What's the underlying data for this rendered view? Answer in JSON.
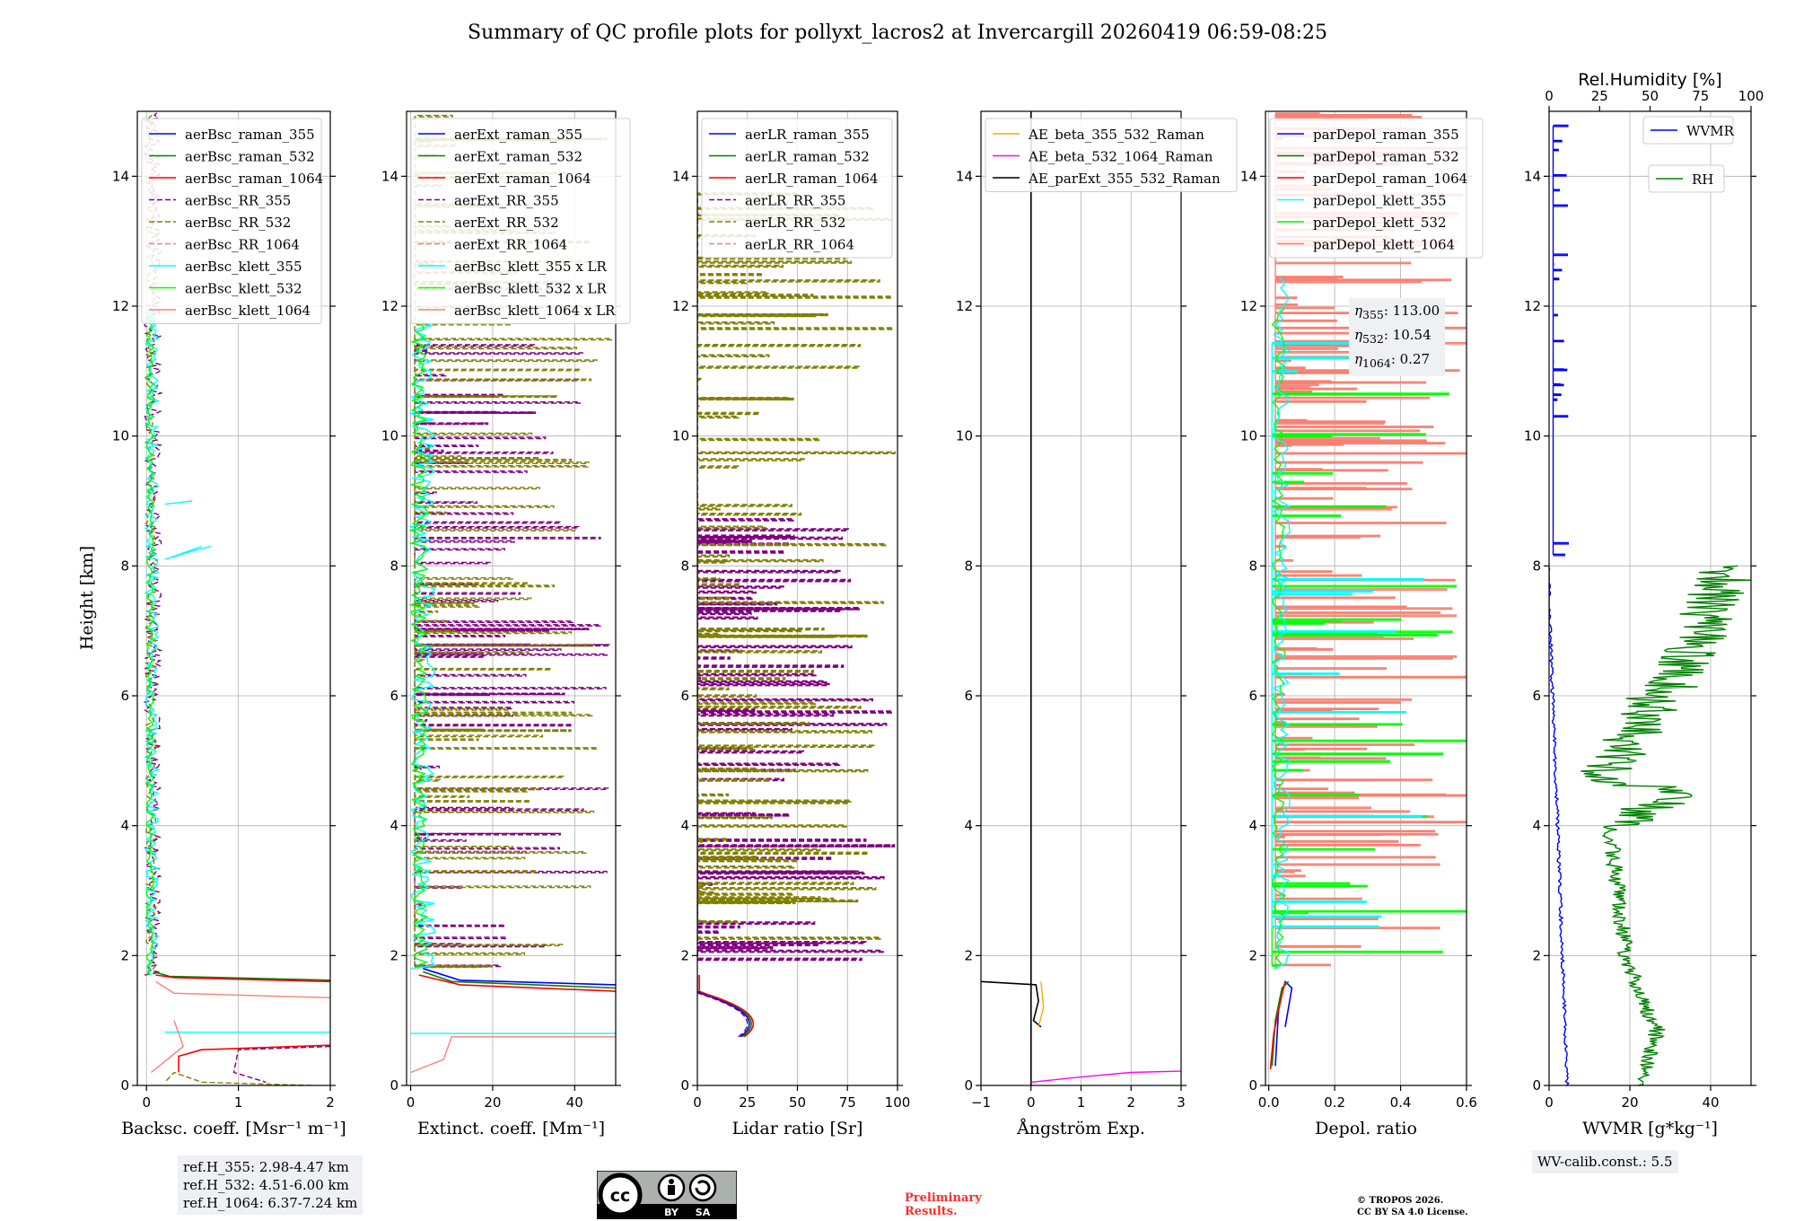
{
  "title": "Summary of QC profile plots for pollyxt_lacros2 at Invercargill 20260419 06:59-08:25",
  "y_label": "Height [km]",
  "ref_heights": [
    "ref.H_355: 2.98-4.47 km",
    "ref.H_532: 4.51-6.00 km",
    "ref.H_1064: 6.37-7.24 km"
  ],
  "wv_calib": "WV-calib.const.: 5.5",
  "eta_values": {
    "eta355": ": 113.00",
    "eta532": ": 10.54",
    "eta1064": ": 0.27"
  },
  "preliminary": "Preliminary\nResults.",
  "copyright": "© TROPOS 2026.\nCC BY SA 4.0 License.",
  "license_badge": {
    "left": "BY",
    "right": "SA",
    "mark": "cc"
  },
  "colors": {
    "blue": "#0000ff",
    "green": "#008000",
    "red": "#ff0000",
    "purple": "#800080",
    "olive": "#808000",
    "salmon": "#fa8072",
    "cyan": "#00ffff",
    "lime": "#00ff00",
    "orange": "#ffa500",
    "magenta": "#ff00ff",
    "black": "#000000"
  },
  "chart_data": [
    {
      "type": "line",
      "id": "bsc",
      "xlabel": "Backsc. coeff. [Msr⁻¹ m⁻¹]",
      "xlim": [
        -0.1,
        2.0
      ],
      "xticks": [
        0,
        1,
        2
      ],
      "ylim": [
        0,
        15
      ],
      "yticks": [
        0,
        2,
        4,
        6,
        8,
        10,
        12,
        14
      ],
      "grid": true,
      "legend": "top-left",
      "series": [
        {
          "name": "aerBsc_raman_355",
          "color": "#0000ff",
          "dash": false
        },
        {
          "name": "aerBsc_raman_532",
          "color": "#008000",
          "dash": false
        },
        {
          "name": "aerBsc_raman_1064",
          "color": "#ff0000",
          "dash": false
        },
        {
          "name": "aerBsc_RR_355",
          "color": "#800080",
          "dash": true
        },
        {
          "name": "aerBsc_RR_532",
          "color": "#808000",
          "dash": true
        },
        {
          "name": "aerBsc_RR_1064",
          "color": "#fa8072",
          "dash": true
        },
        {
          "name": "aerBsc_klett_355",
          "color": "#00ffff",
          "dash": false
        },
        {
          "name": "aerBsc_klett_532",
          "color": "#00ff00",
          "dash": false
        },
        {
          "name": "aerBsc_klett_1064",
          "color": "#fa8072",
          "dash": false
        }
      ]
    },
    {
      "type": "line",
      "id": "ext",
      "xlabel": "Extinct. coeff. [Mm⁻¹]",
      "xlim": [
        -1,
        50
      ],
      "xticks": [
        0,
        20,
        40
      ],
      "ylim": [
        0,
        15
      ],
      "yticks": [
        0,
        2,
        4,
        6,
        8,
        10,
        12,
        14
      ],
      "grid": true,
      "legend": "top-left",
      "series": [
        {
          "name": "aerExt_raman_355",
          "color": "#0000ff",
          "dash": false
        },
        {
          "name": "aerExt_raman_532",
          "color": "#008000",
          "dash": false
        },
        {
          "name": "aerExt_raman_1064",
          "color": "#ff0000",
          "dash": false
        },
        {
          "name": "aerExt_RR_355",
          "color": "#800080",
          "dash": true
        },
        {
          "name": "aerExt_RR_532",
          "color": "#808000",
          "dash": true
        },
        {
          "name": "aerExt_RR_1064",
          "color": "#fa8072",
          "dash": true
        },
        {
          "name": "aerBsc_klett_355 x LR",
          "color": "#00ffff",
          "dash": false
        },
        {
          "name": "aerBsc_klett_532 x LR",
          "color": "#00ff00",
          "dash": false
        },
        {
          "name": "aerBsc_klett_1064 x LR",
          "color": "#fa8072",
          "dash": false
        }
      ]
    },
    {
      "type": "line",
      "id": "lr",
      "xlabel": "Lidar ratio [Sr]",
      "xlim": [
        0,
        100
      ],
      "xticks": [
        0,
        25,
        50,
        75,
        100
      ],
      "ylim": [
        0,
        15
      ],
      "yticks": [
        0,
        2,
        4,
        6,
        8,
        10,
        12,
        14
      ],
      "grid": true,
      "legend": "top-left",
      "series": [
        {
          "name": "aerLR_raman_355",
          "color": "#0000ff",
          "dash": false
        },
        {
          "name": "aerLR_raman_532",
          "color": "#008000",
          "dash": false
        },
        {
          "name": "aerLR_raman_1064",
          "color": "#ff0000",
          "dash": false
        },
        {
          "name": "aerLR_RR_355",
          "color": "#800080",
          "dash": true
        },
        {
          "name": "aerLR_RR_532",
          "color": "#808000",
          "dash": true
        },
        {
          "name": "aerLR_RR_1064",
          "color": "#fa8072",
          "dash": true
        }
      ]
    },
    {
      "type": "line",
      "id": "ae",
      "xlabel": "Ångström Exp.",
      "xlim": [
        -1,
        3
      ],
      "xticks": [
        -1,
        0,
        1,
        2,
        3
      ],
      "ylim": [
        0,
        15
      ],
      "yticks": [
        0,
        2,
        4,
        6,
        8,
        10,
        12,
        14
      ],
      "grid": true,
      "legend": "top-left",
      "series": [
        {
          "name": "AE_beta_355_532_Raman",
          "color": "#ffa500",
          "dash": false
        },
        {
          "name": "AE_beta_532_1064_Raman",
          "color": "#ff00ff",
          "dash": false
        },
        {
          "name": "AE_parExt_355_532_Raman",
          "color": "#000000",
          "dash": false
        }
      ]
    },
    {
      "type": "line",
      "id": "depol",
      "xlabel": "Depol. ratio",
      "xlim": [
        -0.01,
        0.6
      ],
      "xticks": [
        0.0,
        0.2,
        0.4,
        0.6
      ],
      "ylim": [
        0,
        15
      ],
      "yticks": [
        0,
        2,
        4,
        6,
        8,
        10,
        12,
        14
      ],
      "grid": true,
      "legend": "top-left",
      "series": [
        {
          "name": "parDepol_raman_355",
          "color": "#0000ff",
          "dash": false
        },
        {
          "name": "parDepol_raman_532",
          "color": "#008000",
          "dash": false
        },
        {
          "name": "parDepol_raman_1064",
          "color": "#ff0000",
          "dash": false
        },
        {
          "name": "parDepol_klett_355",
          "color": "#00ffff",
          "dash": false
        },
        {
          "name": "parDepol_klett_532",
          "color": "#00ff00",
          "dash": false
        },
        {
          "name": "parDepol_klett_1064",
          "color": "#fa8072",
          "dash": false
        }
      ]
    },
    {
      "type": "line",
      "id": "wv",
      "xlabel": "WVMR [g*kg⁻¹]",
      "xlim": [
        0,
        50
      ],
      "xticks": [
        0,
        20,
        40
      ],
      "top_xlabel": "Rel.Humidity [%]",
      "top_xlim": [
        0,
        100
      ],
      "top_xticks": [
        0,
        25,
        50,
        75,
        100
      ],
      "ylim": [
        0,
        15
      ],
      "yticks": [
        0,
        2,
        4,
        6,
        8,
        10,
        12,
        14
      ],
      "grid": true,
      "legend": "top-right",
      "series": [
        {
          "name": "WVMR",
          "color": "#0000ff",
          "dash": false
        },
        {
          "name": "RH",
          "color": "#008000",
          "dash": false
        }
      ]
    }
  ]
}
